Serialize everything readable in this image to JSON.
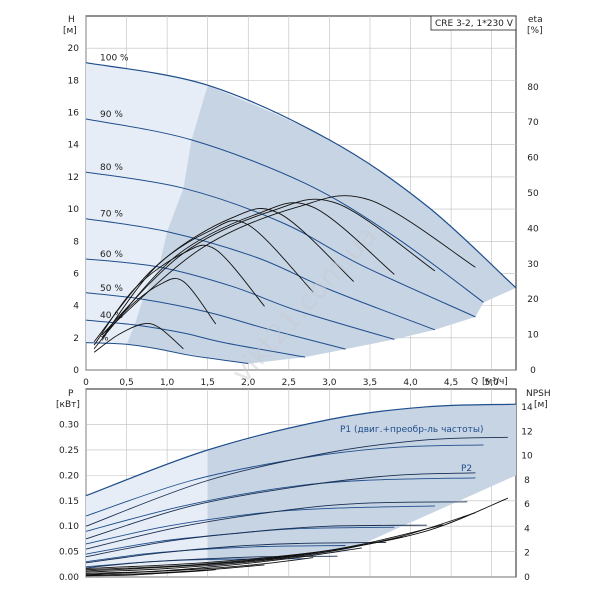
{
  "chart_data": [
    {
      "type": "line",
      "title_box": "CRE 3-2, 1*230 V",
      "ylabel": "H",
      "yunit": "[м]",
      "y2label": "eta",
      "y2unit": "[%]",
      "xlabel": "Q",
      "xunit": "[м³/ч]",
      "xlim": [
        0,
        5.3
      ],
      "ylim": [
        0,
        22
      ],
      "y2lim": [
        0,
        100
      ],
      "x_ticks": [
        "0",
        "0,5",
        "1,0",
        "1,5",
        "2,0",
        "2,5",
        "3,0",
        "3,5",
        "4,0",
        "4,5",
        "5,0"
      ],
      "y_ticks": [
        "0",
        "2",
        "4",
        "6",
        "8",
        "10",
        "12",
        "14",
        "16",
        "18",
        "20"
      ],
      "y2_ticks": [
        "0",
        "10",
        "20",
        "30",
        "40",
        "50",
        "60",
        "70",
        "80"
      ],
      "grid": true,
      "colors": {
        "head": "#1f4e8c",
        "eta": "#111111",
        "area": "#c7d4e4",
        "area_light": "#e6edf6"
      },
      "speed_curves": [
        {
          "label": "100 %",
          "x": [
            0,
            1.5,
            3.0,
            4.2,
            5.3
          ],
          "y": [
            19.1,
            17.7,
            14.3,
            10.2,
            5.1
          ]
        },
        {
          "label": "90 %",
          "x": [
            0,
            1.3,
            2.7,
            3.8,
            4.9
          ],
          "y": [
            15.6,
            14.3,
            11.6,
            8.3,
            4.2
          ]
        },
        {
          "label": "80 %",
          "x": [
            0,
            1.2,
            2.4,
            3.4,
            4.8
          ],
          "y": [
            12.3,
            11.3,
            9.2,
            6.5,
            3.3
          ]
        },
        {
          "label": "70 %",
          "x": [
            0,
            1.0,
            2.1,
            3.0,
            4.3
          ],
          "y": [
            9.4,
            8.6,
            7.0,
            5.0,
            2.5
          ]
        },
        {
          "label": "60 %",
          "x": [
            0,
            0.9,
            1.8,
            2.6,
            3.8
          ],
          "y": [
            6.9,
            6.4,
            5.2,
            3.7,
            1.9
          ]
        },
        {
          "label": "50 %",
          "x": [
            0,
            0.7,
            1.5,
            2.2,
            3.2
          ],
          "y": [
            4.8,
            4.4,
            3.6,
            2.6,
            1.3
          ]
        },
        {
          "label": "40 %",
          "x": [
            0,
            0.6,
            1.2,
            1.7,
            2.7
          ],
          "y": [
            3.1,
            2.8,
            2.3,
            1.7,
            0.8
          ]
        },
        {
          "label": "%",
          "x": [
            0,
            0.5,
            0.9,
            1.3,
            2.0
          ],
          "y": [
            1.7,
            1.6,
            1.3,
            0.9,
            0.4
          ]
        }
      ],
      "eta_curves": [
        {
          "x": [
            0.2,
            1.4,
            2.6,
            3.5,
            4.8
          ],
          "y": [
            10,
            34,
            46,
            48,
            29
          ]
        },
        {
          "x": [
            0.2,
            1.2,
            2.3,
            3.1,
            4.3
          ],
          "y": [
            10,
            33,
            45,
            47,
            28
          ]
        },
        {
          "x": [
            0.2,
            1.1,
            2.1,
            2.8,
            3.8
          ],
          "y": [
            9,
            32,
            44,
            46,
            27
          ]
        },
        {
          "x": [
            0.2,
            0.9,
            1.8,
            2.4,
            3.3
          ],
          "y": [
            9,
            30,
            43,
            44,
            25
          ]
        },
        {
          "x": [
            0.1,
            0.8,
            1.5,
            2.0,
            2.8
          ],
          "y": [
            8,
            28,
            39,
            41,
            22
          ]
        },
        {
          "x": [
            0.1,
            0.6,
            1.2,
            1.6,
            2.2
          ],
          "y": [
            7,
            23,
            33,
            34,
            18
          ]
        },
        {
          "x": [
            0.1,
            0.5,
            0.9,
            1.2,
            1.6
          ],
          "y": [
            6,
            17,
            24,
            25,
            13
          ]
        },
        {
          "x": [
            0.1,
            0.4,
            0.7,
            0.9,
            1.2
          ],
          "y": [
            5,
            10,
            13,
            12,
            6
          ]
        }
      ]
    },
    {
      "type": "line",
      "ylabel": "P",
      "yunit": "[кВт]",
      "y2label": "NPSH",
      "y2unit": "[м]",
      "xlim": [
        0,
        5.3
      ],
      "ylim": [
        0,
        0.37
      ],
      "y2lim": [
        0,
        15.5
      ],
      "y_ticks": [
        "0.00",
        "0.05",
        "0.10",
        "0.15",
        "0.20",
        "0.25",
        "0.30"
      ],
      "y2_ticks": [
        "0",
        "2",
        "4",
        "6",
        "8",
        "10",
        "12",
        "14"
      ],
      "grid": true,
      "series_labels": {
        "p1": "P1 (двиг.+преобр-ль частоты)",
        "p2": "P2"
      },
      "p1_curves": [
        {
          "x": [
            0,
            1.5,
            3.0,
            4.2,
            5.3
          ],
          "y": [
            0.16,
            0.25,
            0.31,
            0.335,
            0.34
          ]
        },
        {
          "x": [
            0,
            1.3,
            2.7,
            3.8,
            4.9
          ],
          "y": [
            0.12,
            0.19,
            0.235,
            0.255,
            0.26
          ]
        },
        {
          "x": [
            0,
            1.2,
            2.4,
            3.4,
            4.8
          ],
          "y": [
            0.09,
            0.14,
            0.175,
            0.19,
            0.195
          ]
        },
        {
          "x": [
            0,
            1.0,
            2.1,
            3.0,
            4.3
          ],
          "y": [
            0.065,
            0.1,
            0.125,
            0.135,
            0.14
          ]
        },
        {
          "x": [
            0,
            0.9,
            1.8,
            2.6,
            3.8
          ],
          "y": [
            0.045,
            0.07,
            0.085,
            0.095,
            0.098
          ]
        },
        {
          "x": [
            0,
            0.7,
            1.5,
            2.2,
            3.2
          ],
          "y": [
            0.03,
            0.045,
            0.055,
            0.06,
            0.062
          ]
        },
        {
          "x": [
            0,
            0.6,
            1.2,
            1.7,
            2.7
          ],
          "y": [
            0.02,
            0.028,
            0.033,
            0.035,
            0.036
          ]
        }
      ],
      "p2_curves": [
        {
          "x": [
            0,
            1.5,
            3.0,
            4.2,
            5.2
          ],
          "y": [
            0.1,
            0.19,
            0.245,
            0.27,
            0.275
          ]
        },
        {
          "x": [
            0,
            1.3,
            2.7,
            3.8,
            4.8
          ],
          "y": [
            0.075,
            0.14,
            0.18,
            0.2,
            0.205
          ]
        },
        {
          "x": [
            0,
            1.2,
            2.4,
            3.4,
            4.7
          ],
          "y": [
            0.055,
            0.1,
            0.13,
            0.145,
            0.148
          ]
        },
        {
          "x": [
            0,
            1.0,
            2.1,
            3.0,
            4.2
          ],
          "y": [
            0.04,
            0.07,
            0.09,
            0.1,
            0.102
          ]
        },
        {
          "x": [
            0,
            0.9,
            1.8,
            2.6,
            3.7
          ],
          "y": [
            0.028,
            0.047,
            0.06,
            0.066,
            0.068
          ]
        },
        {
          "x": [
            0,
            0.7,
            1.5,
            2.2,
            3.1
          ],
          "y": [
            0.018,
            0.029,
            0.036,
            0.04,
            0.041
          ]
        }
      ],
      "npsh_curves": [
        {
          "x": [
            0,
            1.5,
            3.0,
            4.2,
            5.2
          ],
          "y": [
            0.7,
            1.2,
            2.2,
            3.8,
            6.5
          ]
        },
        {
          "x": [
            0,
            1.3,
            2.7,
            3.8,
            4.8
          ],
          "y": [
            0.6,
            1.0,
            1.9,
            3.2,
            5.3
          ]
        },
        {
          "x": [
            0,
            1.2,
            2.4,
            3.4,
            4.4
          ],
          "y": [
            0.5,
            0.9,
            1.6,
            2.7,
            4.3
          ]
        },
        {
          "x": [
            0,
            1.0,
            2.1,
            3.0,
            3.9
          ],
          "y": [
            0.4,
            0.7,
            1.3,
            2.1,
            3.3
          ]
        },
        {
          "x": [
            0,
            0.9,
            1.8,
            2.6,
            3.4
          ],
          "y": [
            0.3,
            0.5,
            1.0,
            1.6,
            2.4
          ]
        },
        {
          "x": [
            0,
            0.7,
            1.5,
            2.2,
            2.8
          ],
          "y": [
            0.2,
            0.4,
            0.7,
            1.1,
            1.6
          ]
        },
        {
          "x": [
            0,
            0.6,
            1.2,
            1.7,
            2.2
          ],
          "y": [
            0.15,
            0.25,
            0.45,
            0.7,
            1.0
          ]
        },
        {
          "x": [
            0,
            0.5,
            0.9,
            1.3,
            1.6
          ],
          "y": [
            0.1,
            0.15,
            0.3,
            0.45,
            0.6
          ]
        }
      ]
    }
  ],
  "watermark": "vikt21.com.ua"
}
